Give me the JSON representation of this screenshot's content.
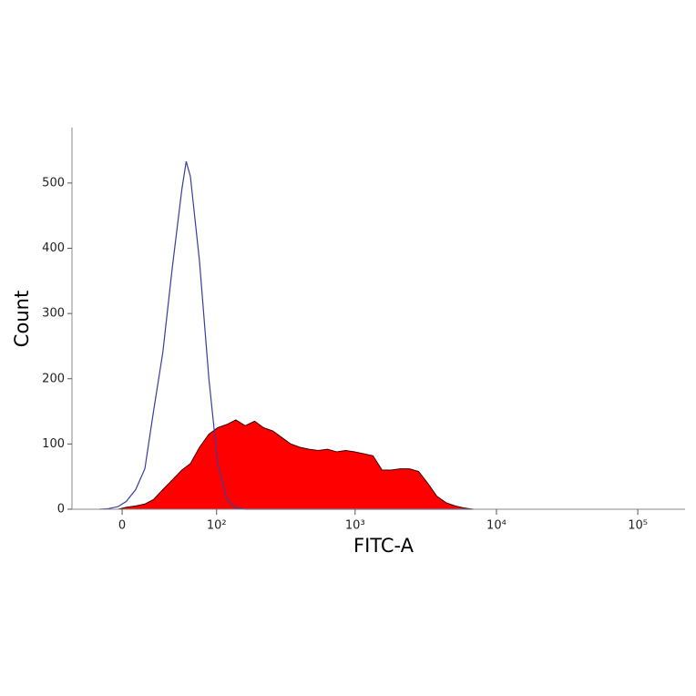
{
  "chart_data": {
    "type": "histogram-overlay",
    "xlabel": "FITC-A",
    "ylabel": "Count",
    "xscale": "asinh",
    "xlim": [
      -41,
      216000
    ],
    "ylim": [
      0,
      585
    ],
    "xticks": [
      0,
      {
        "value": 100,
        "label": "10²"
      },
      {
        "value": 1000,
        "label": "10³"
      },
      {
        "value": 10000,
        "label": "10⁴"
      },
      {
        "value": 100000,
        "label": "10⁵"
      }
    ],
    "yticks": [
      0,
      100,
      200,
      300,
      400,
      500
    ],
    "x": [
      -17,
      -10,
      -3,
      3,
      10,
      17,
      24,
      32,
      41,
      51,
      56,
      61,
      73,
      87,
      102,
      120,
      140,
      164,
      192,
      223,
      260,
      301,
      350,
      406,
      472,
      548,
      638,
      740,
      857,
      994,
      1153,
      1337,
      1552,
      1800,
      2090,
      2427,
      2815,
      3267,
      3790,
      4397,
      5100,
      5920,
      6860
    ],
    "series": [
      {
        "style": "line",
        "color": "#3c3c9e",
        "values": [
          0,
          1,
          4,
          12,
          30,
          62,
          150,
          240,
          370,
          490,
          533,
          510,
          380,
          200,
          70,
          15,
          2,
          0,
          0,
          0,
          0,
          0,
          0,
          0,
          0,
          0,
          0,
          0,
          0,
          0,
          0,
          0,
          0,
          0,
          0,
          0,
          0,
          0,
          0,
          0,
          0,
          0,
          0
        ]
      },
      {
        "style": "area",
        "color": "#ff0000",
        "values": [
          0,
          0,
          0,
          3,
          5,
          8,
          15,
          30,
          45,
          60,
          65,
          70,
          95,
          115,
          125,
          130,
          137,
          128,
          135,
          125,
          120,
          110,
          100,
          95,
          92,
          90,
          92,
          88,
          90,
          88,
          85,
          82,
          60,
          60,
          62,
          62,
          58,
          40,
          20,
          10,
          5,
          2,
          0
        ]
      }
    ]
  }
}
